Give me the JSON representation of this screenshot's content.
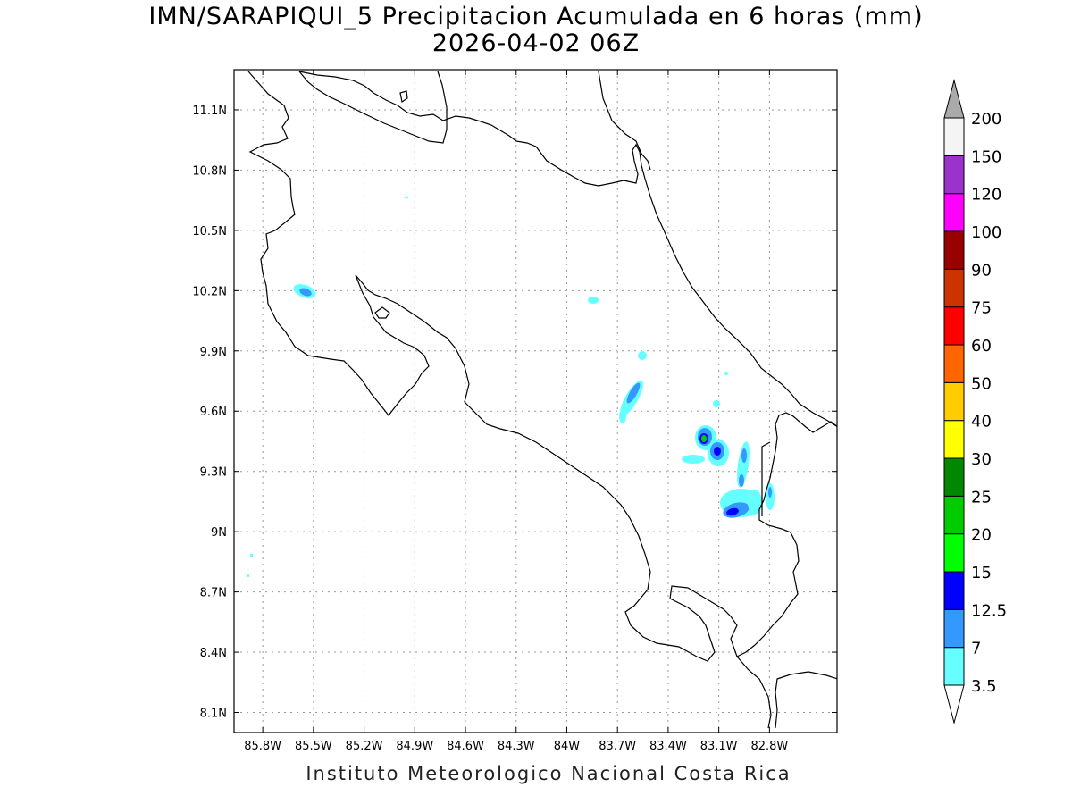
{
  "header": {
    "title": "IMN/SARAPIQUI_5 Precipitacion Acumulada en 6 horas (mm)",
    "subtitle": "2026-04-02 06Z"
  },
  "footer": {
    "credit": "Instituto Meteorologico Nacional Costa Rica"
  },
  "map": {
    "lon_range": [
      -85.97,
      -82.4
    ],
    "lat_range": [
      8.0,
      11.3
    ],
    "gridlines": true,
    "y_ticks": [
      {
        "value": 11.1,
        "label": "11.1N"
      },
      {
        "value": 10.8,
        "label": "10.8N"
      },
      {
        "value": 10.5,
        "label": "10.5N"
      },
      {
        "value": 10.2,
        "label": "10.2N"
      },
      {
        "value": 9.9,
        "label": "9.9N"
      },
      {
        "value": 9.6,
        "label": "9.6N"
      },
      {
        "value": 9.3,
        "label": "9.3N"
      },
      {
        "value": 9.0,
        "label": "9N"
      },
      {
        "value": 8.7,
        "label": "8.7N"
      },
      {
        "value": 8.4,
        "label": "8.4N"
      },
      {
        "value": 8.1,
        "label": "8.1N"
      }
    ],
    "x_ticks": [
      {
        "value": -85.8,
        "label": "85.8W"
      },
      {
        "value": -85.5,
        "label": "85.5W"
      },
      {
        "value": -85.2,
        "label": "85.2W"
      },
      {
        "value": -84.9,
        "label": "84.9W"
      },
      {
        "value": -84.6,
        "label": "84.6W"
      },
      {
        "value": -84.3,
        "label": "84.3W"
      },
      {
        "value": -84.0,
        "label": "84W"
      },
      {
        "value": -83.7,
        "label": "83.7W"
      },
      {
        "value": -83.4,
        "label": "83.4W"
      },
      {
        "value": -83.1,
        "label": "83.1W"
      },
      {
        "value": -82.8,
        "label": "82.8W"
      }
    ]
  },
  "colorbar": {
    "levels": [
      {
        "label": "3.5",
        "color": "#66ffff"
      },
      {
        "label": "7",
        "color": "#3399ff"
      },
      {
        "label": "12.5",
        "color": "#0000ff"
      },
      {
        "label": "15",
        "color": "#00ff00"
      },
      {
        "label": "20",
        "color": "#00cc00"
      },
      {
        "label": "25",
        "color": "#008800"
      },
      {
        "label": "30",
        "color": "#ffff00"
      },
      {
        "label": "40",
        "color": "#ffcc00"
      },
      {
        "label": "50",
        "color": "#ff6600"
      },
      {
        "label": "60",
        "color": "#ff0000"
      },
      {
        "label": "75",
        "color": "#cc3300"
      },
      {
        "label": "90",
        "color": "#990000"
      },
      {
        "label": "100",
        "color": "#ff00ff"
      },
      {
        "label": "120",
        "color": "#9933cc"
      },
      {
        "label": "150",
        "color": "#f4f4f4"
      },
      {
        "label": "200",
        "color": "#aaaaaa"
      }
    ]
  }
}
